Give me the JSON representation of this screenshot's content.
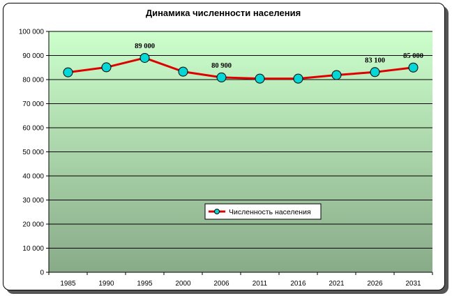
{
  "chart_data": {
    "type": "line",
    "title": "Динамика численности населения",
    "categories": [
      "1985",
      "1990",
      "1995",
      "2000",
      "2006",
      "2011",
      "2016",
      "2021",
      "2026",
      "2031"
    ],
    "series": [
      {
        "name": "Численность населения",
        "values": [
          83000,
          85100,
          89000,
          83300,
          80900,
          80400,
          80400,
          81900,
          83100,
          85000
        ],
        "color": "#e00000",
        "marker_color": "#00d8d8"
      }
    ],
    "data_labels": [
      {
        "index": 2,
        "text": "89 000"
      },
      {
        "index": 4,
        "text": "80 900"
      },
      {
        "index": 8,
        "text": "83 100"
      },
      {
        "index": 9,
        "text": "85 000"
      }
    ],
    "y_ticks": [
      "0",
      "10 000",
      "20 000",
      "30 000",
      "40 000",
      "50 000",
      "60 000",
      "70 000",
      "80 000",
      "90 000",
      "100 000"
    ],
    "ylim": [
      0,
      100000
    ],
    "grid": true,
    "legend_position": "bottom-right",
    "background_gradient": [
      "#ccffcc",
      "#88aa88"
    ]
  }
}
